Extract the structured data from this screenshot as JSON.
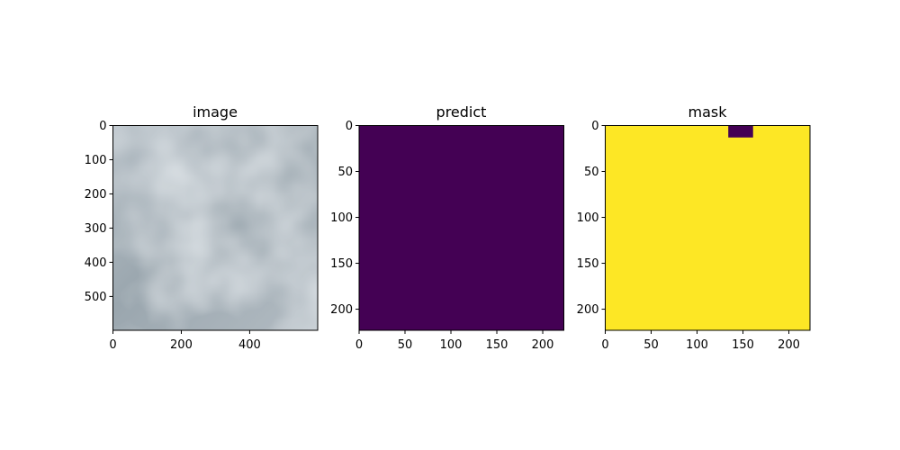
{
  "chart_data": [
    {
      "type": "heatmap",
      "title": "image",
      "xlabel": "",
      "ylabel": "",
      "xlim": [
        0,
        599
      ],
      "ylim": [
        599,
        0
      ],
      "xticks": [
        0,
        200,
        400
      ],
      "yticks": [
        0,
        100,
        200,
        300,
        400,
        500
      ],
      "grid": false,
      "content": "photograph of overcast grey clouds",
      "colors": {
        "base": "#a9b4bc",
        "dark": "#8d99a2",
        "light": "#d3dbe0"
      }
    },
    {
      "type": "heatmap",
      "title": "predict",
      "xlabel": "",
      "ylabel": "",
      "xlim": [
        0,
        223
      ],
      "ylim": [
        223,
        0
      ],
      "xticks": [
        0,
        50,
        100,
        150,
        200
      ],
      "yticks": [
        0,
        50,
        100,
        150,
        200
      ],
      "grid": false,
      "fill_value": 0,
      "colors": {
        "fill": "#440154"
      }
    },
    {
      "type": "heatmap",
      "title": "mask",
      "xlabel": "",
      "ylabel": "",
      "xlim": [
        0,
        223
      ],
      "ylim": [
        223,
        0
      ],
      "xticks": [
        0,
        50,
        100,
        150,
        200
      ],
      "yticks": [
        0,
        50,
        100,
        150,
        200
      ],
      "grid": false,
      "fill_value": 1,
      "regions": [
        {
          "value": 0,
          "x0": 134,
          "x1": 161,
          "y0": 0,
          "y1": 13
        }
      ],
      "colors": {
        "fill": "#fde725",
        "region": "#440154"
      }
    }
  ]
}
